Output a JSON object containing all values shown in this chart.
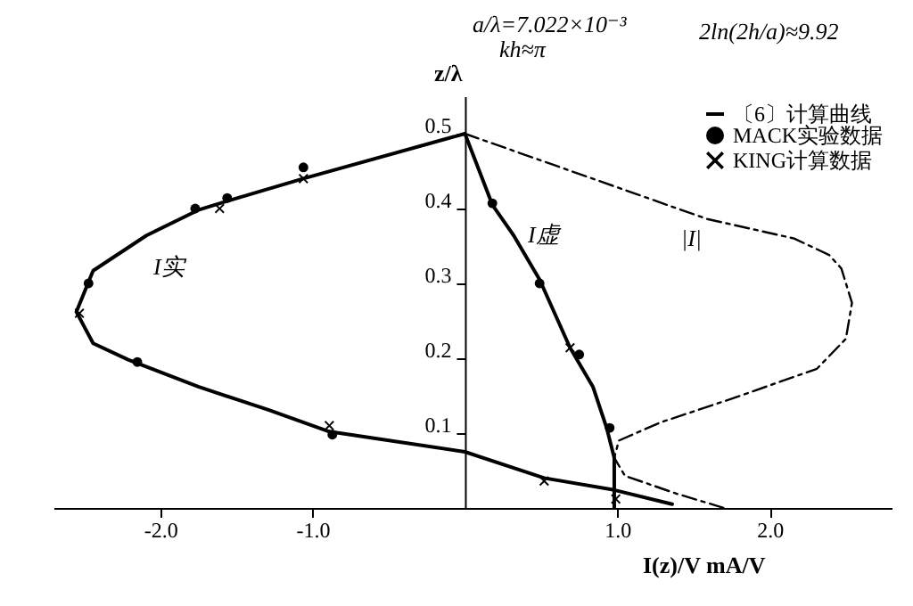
{
  "chart_data": {
    "type": "line",
    "xlabel": "I(z)/V mA/V",
    "ylabel": "z/λ",
    "xlim": [
      -2.7,
      2.8
    ],
    "ylim": [
      0,
      0.55
    ],
    "xticks": [
      {
        "value": -2,
        "label": "-2.0"
      },
      {
        "value": -1,
        "label": "-1.0"
      },
      {
        "value": 1,
        "label": "1.0"
      },
      {
        "value": 2,
        "label": "2.0"
      }
    ],
    "yticks": [
      0.1,
      0.2,
      0.3,
      0.4,
      0.5
    ],
    "grid": false,
    "legend": "top right",
    "annotations": [
      "a/λ=7.022×10⁻³",
      "kh≈π",
      "2ln(2h/a)≈9.92",
      "I实",
      "I虚",
      "|I|"
    ],
    "series": [
      {
        "name": "〔6〕计算曲线",
        "type": "line",
        "line_style": "solid",
        "color": "#000000",
        "x": [
          0,
          -1.06,
          -1.56,
          -1.75,
          -2.09,
          -2.44,
          -2.55,
          -2.44,
          -2.21,
          -1.75,
          -1.29,
          -0.89,
          0,
          0.52,
          0.98,
          1.36
        ],
        "values": [
          0.5,
          0.44,
          0.41,
          0.398,
          0.364,
          0.317,
          0.262,
          0.22,
          0.198,
          0.162,
          0.131,
          0.102,
          0.075,
          0.04,
          0.024,
          0.005
        ]
      },
      {
        "type": "line",
        "line_style": "solid",
        "color": "#000000",
        "x": [
          0,
          0.18,
          0.32,
          0.49,
          0.69,
          0.84,
          0.93,
          0.98,
          0.98
        ],
        "values": [
          0.5,
          0.405,
          0.364,
          0.305,
          0.214,
          0.162,
          0.107,
          0.067,
          0
        ]
      },
      {
        "type": "line",
        "line_style": "dashed",
        "color": "#000000",
        "x": [
          0,
          1.59,
          2.16,
          2.39,
          2.47,
          2.54,
          2.5,
          2.31,
          1.78,
          1.28,
          1.01,
          0.98,
          1.05,
          1.39,
          1.7
        ],
        "values": [
          0.5,
          0.386,
          0.36,
          0.338,
          0.32,
          0.274,
          0.226,
          0.186,
          0.148,
          0.114,
          0.09,
          0.067,
          0.043,
          0.019,
          0
        ]
      },
      {
        "name": "MACK实验数据",
        "type": "scatter",
        "marker": "circle",
        "color": "#000000",
        "x": [
          -1.77,
          -1.56,
          -1.06,
          -2.47,
          -2.15,
          -0.87,
          0.18,
          0.49,
          0.75,
          0.95
        ],
        "values": [
          0.4,
          0.414,
          0.455,
          0.3,
          0.195,
          0.098,
          0.407,
          0.3,
          0.205,
          0.107
        ]
      },
      {
        "name": "KING计算数据",
        "type": "scatter",
        "marker": "cross",
        "color": "#000000",
        "x": [
          -1.06,
          -1.61,
          -2.53,
          -0.89,
          0.52,
          0.99,
          0.69
        ],
        "values": [
          0.44,
          0.4,
          0.26,
          0.11,
          0.036,
          0.012,
          0.214
        ]
      }
    ]
  }
}
